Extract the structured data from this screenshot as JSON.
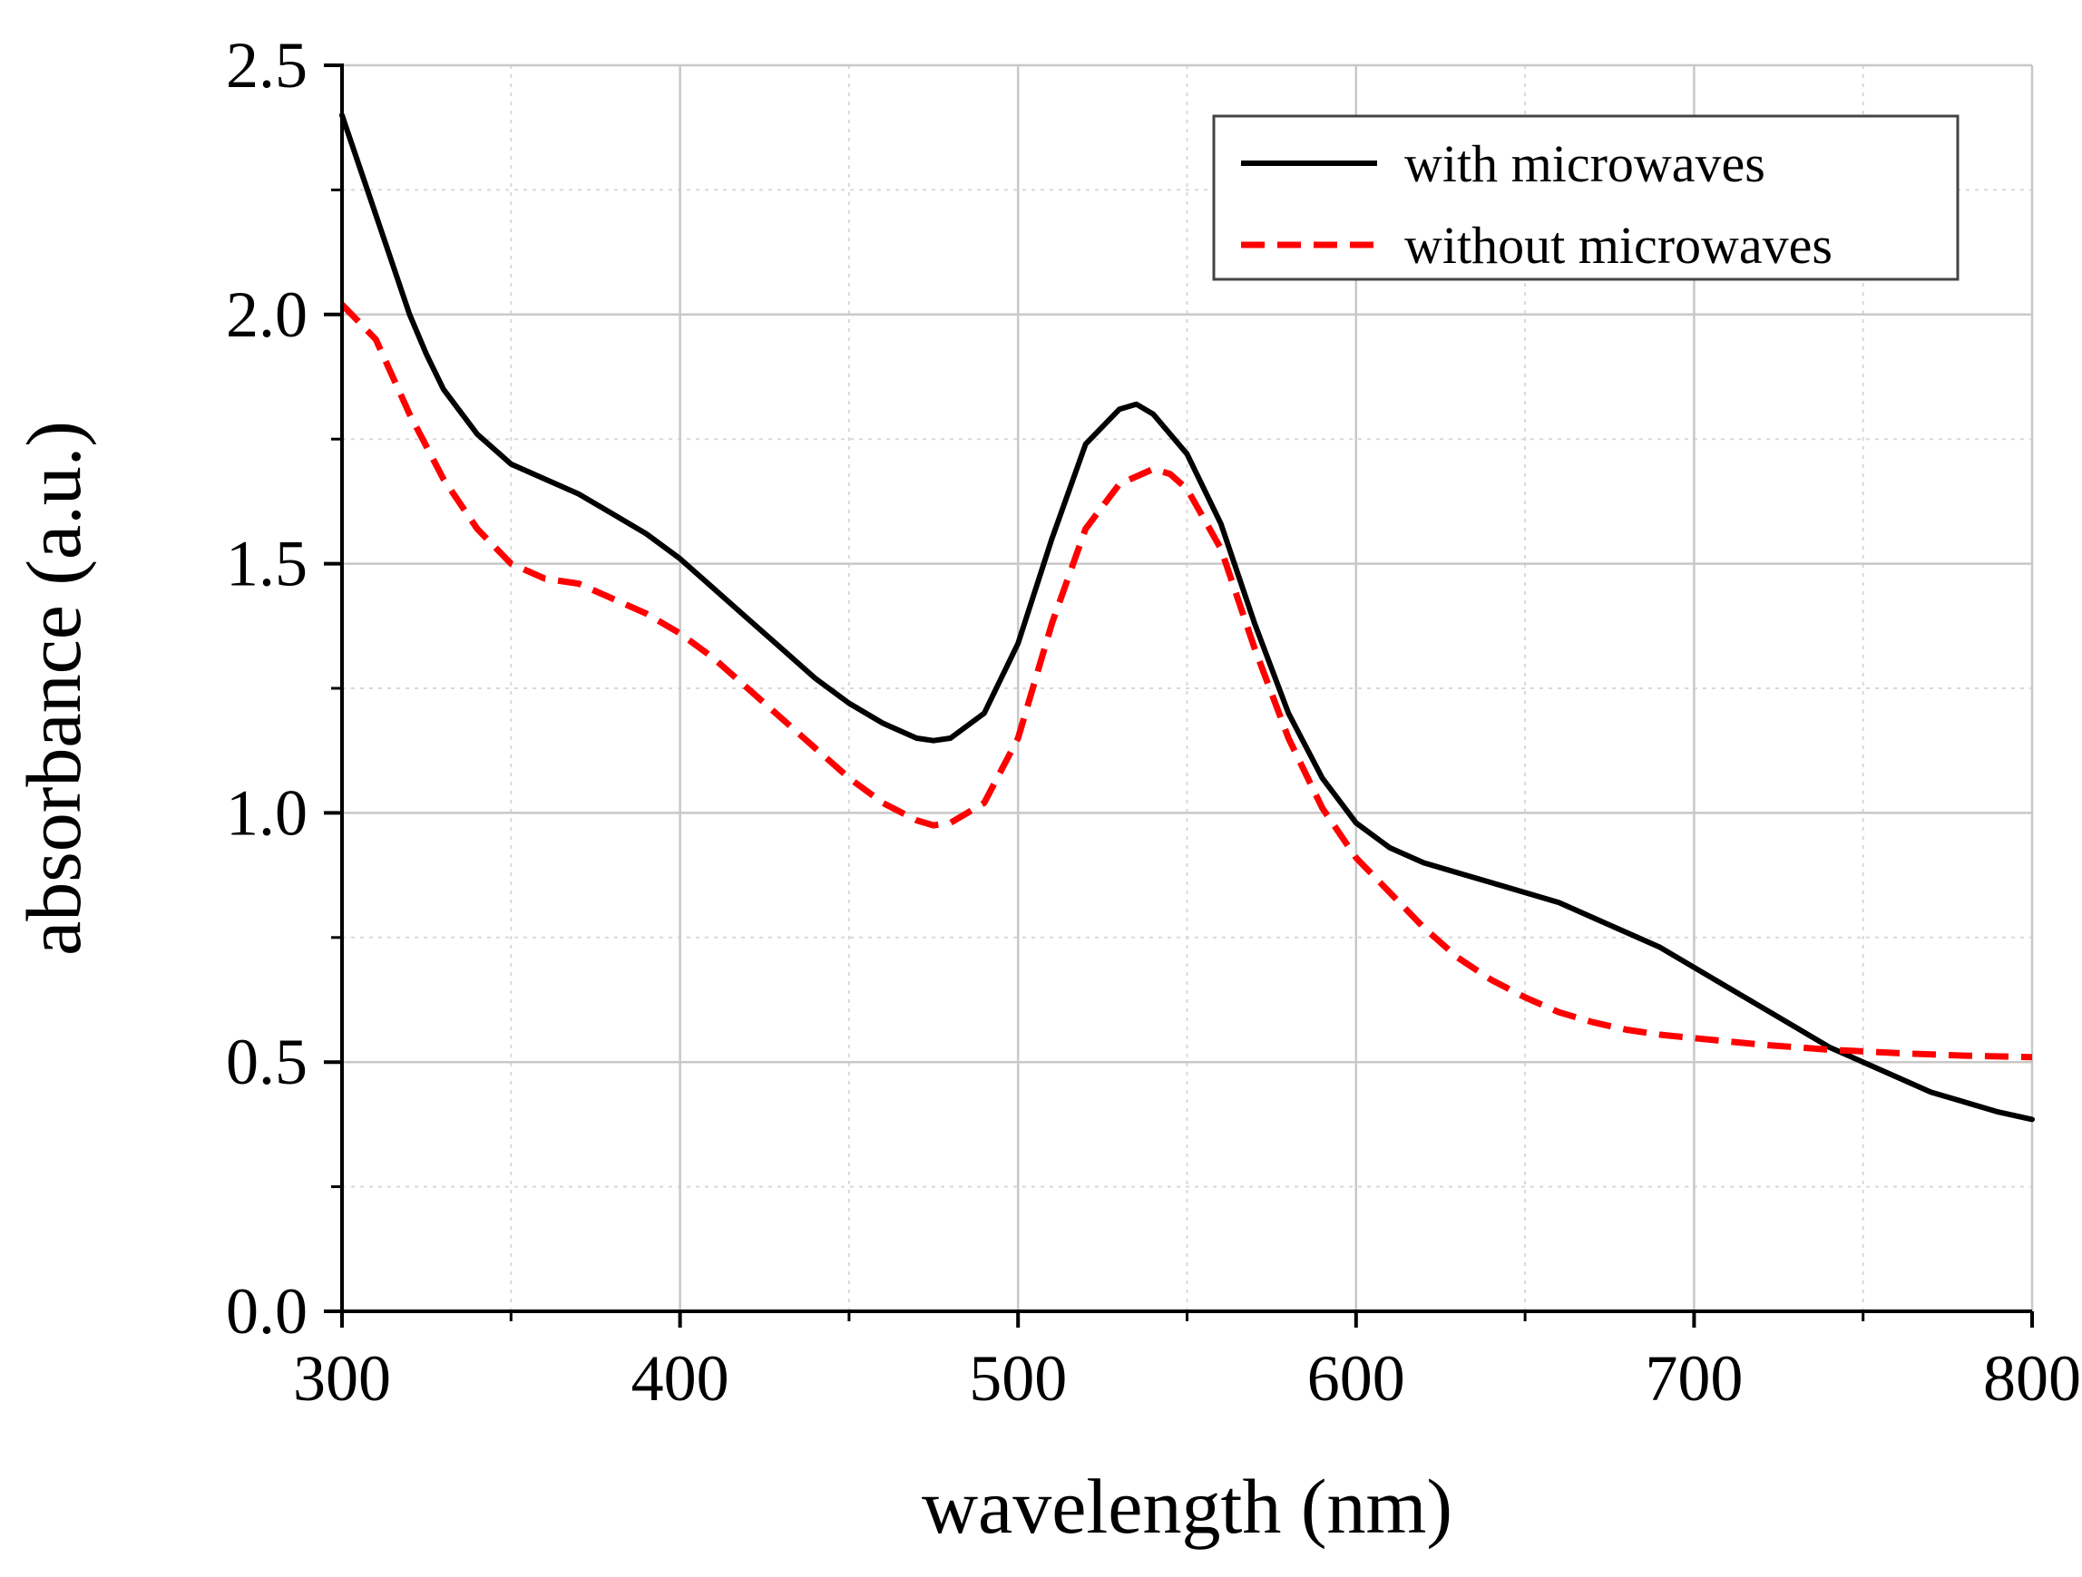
{
  "chart_data": {
    "type": "line",
    "xlabel": "wavelength (nm)",
    "ylabel": "absorbance (a.u.)",
    "xlim": [
      300,
      800
    ],
    "ylim": [
      0.0,
      2.5
    ],
    "x_ticks": [
      300,
      400,
      500,
      600,
      700,
      800
    ],
    "x_tick_labels": [
      "300",
      "400",
      "500",
      "600",
      "700",
      "800"
    ],
    "y_ticks": [
      0.0,
      0.5,
      1.0,
      1.5,
      2.0,
      2.5
    ],
    "y_tick_labels": [
      "0.0",
      "0.5",
      "1.0",
      "1.5",
      "2.0",
      "2.5"
    ],
    "x_minor_ticks": [
      350,
      450,
      550,
      650,
      750
    ],
    "y_minor_ticks": [
      0.25,
      0.75,
      1.25,
      1.75,
      2.25
    ],
    "grid": true,
    "legend_position": "top-right",
    "series": [
      {
        "name": "with microwaves",
        "color": "#000000",
        "style": "solid",
        "x": [
          300,
          305,
          310,
          315,
          320,
          325,
          330,
          340,
          350,
          360,
          370,
          380,
          390,
          400,
          410,
          420,
          430,
          440,
          450,
          460,
          470,
          475,
          480,
          490,
          500,
          510,
          520,
          530,
          535,
          540,
          550,
          560,
          570,
          580,
          590,
          600,
          610,
          620,
          630,
          640,
          650,
          660,
          670,
          680,
          690,
          700,
          710,
          720,
          730,
          740,
          750,
          760,
          770,
          780,
          790,
          800
        ],
        "y": [
          2.4,
          2.3,
          2.2,
          2.1,
          2.0,
          1.92,
          1.85,
          1.76,
          1.7,
          1.67,
          1.64,
          1.6,
          1.56,
          1.51,
          1.45,
          1.39,
          1.33,
          1.27,
          1.22,
          1.18,
          1.15,
          1.145,
          1.15,
          1.2,
          1.34,
          1.55,
          1.74,
          1.81,
          1.82,
          1.8,
          1.72,
          1.58,
          1.38,
          1.2,
          1.07,
          0.98,
          0.93,
          0.9,
          0.88,
          0.86,
          0.84,
          0.82,
          0.79,
          0.76,
          0.73,
          0.69,
          0.65,
          0.61,
          0.57,
          0.53,
          0.5,
          0.47,
          0.44,
          0.42,
          0.4,
          0.385
        ]
      },
      {
        "name": "without microwaves",
        "color": "#ff0000",
        "style": "dashed",
        "x": [
          300,
          310,
          320,
          330,
          340,
          350,
          360,
          370,
          380,
          390,
          400,
          410,
          420,
          430,
          440,
          450,
          460,
          470,
          475,
          480,
          490,
          500,
          510,
          520,
          530,
          540,
          545,
          550,
          560,
          570,
          580,
          590,
          600,
          610,
          620,
          630,
          640,
          650,
          660,
          670,
          680,
          690,
          700,
          720,
          740,
          760,
          780,
          800
        ],
        "y": [
          2.02,
          1.95,
          1.8,
          1.67,
          1.57,
          1.5,
          1.47,
          1.46,
          1.43,
          1.4,
          1.36,
          1.31,
          1.25,
          1.19,
          1.13,
          1.07,
          1.02,
          0.985,
          0.975,
          0.98,
          1.02,
          1.15,
          1.38,
          1.57,
          1.66,
          1.69,
          1.68,
          1.65,
          1.53,
          1.33,
          1.15,
          1.01,
          0.91,
          0.84,
          0.77,
          0.71,
          0.665,
          0.63,
          0.6,
          0.58,
          0.565,
          0.555,
          0.548,
          0.535,
          0.525,
          0.518,
          0.513,
          0.51
        ]
      }
    ]
  }
}
